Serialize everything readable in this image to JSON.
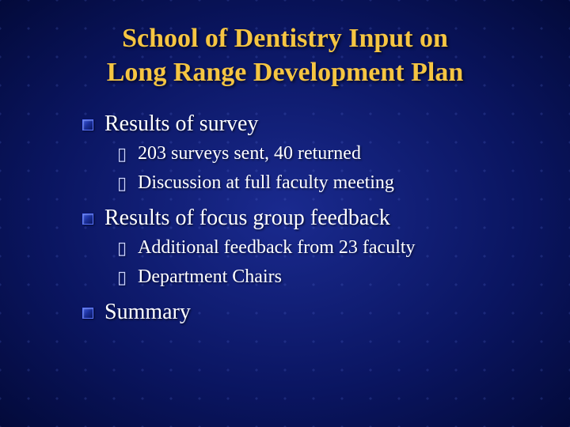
{
  "slide": {
    "title_line1": "School of Dentistry Input on",
    "title_line2": "Long Range Development Plan",
    "title_color": "#f5c542",
    "text_color": "#ffffff",
    "background_gradient_center": "#1a2a8f",
    "background_gradient_edge": "#030a3a",
    "bullet_sub_glyph": "▯",
    "items": [
      {
        "label": "Results of survey",
        "children": [
          {
            "label": "203 surveys sent, 40 returned"
          },
          {
            "label": "Discussion at full faculty meeting"
          }
        ]
      },
      {
        "label": "Results of focus group feedback",
        "children": [
          {
            "label": "Additional feedback from 23 faculty"
          },
          {
            "label": "Department Chairs"
          }
        ]
      },
      {
        "label": "Summary",
        "children": []
      }
    ]
  }
}
